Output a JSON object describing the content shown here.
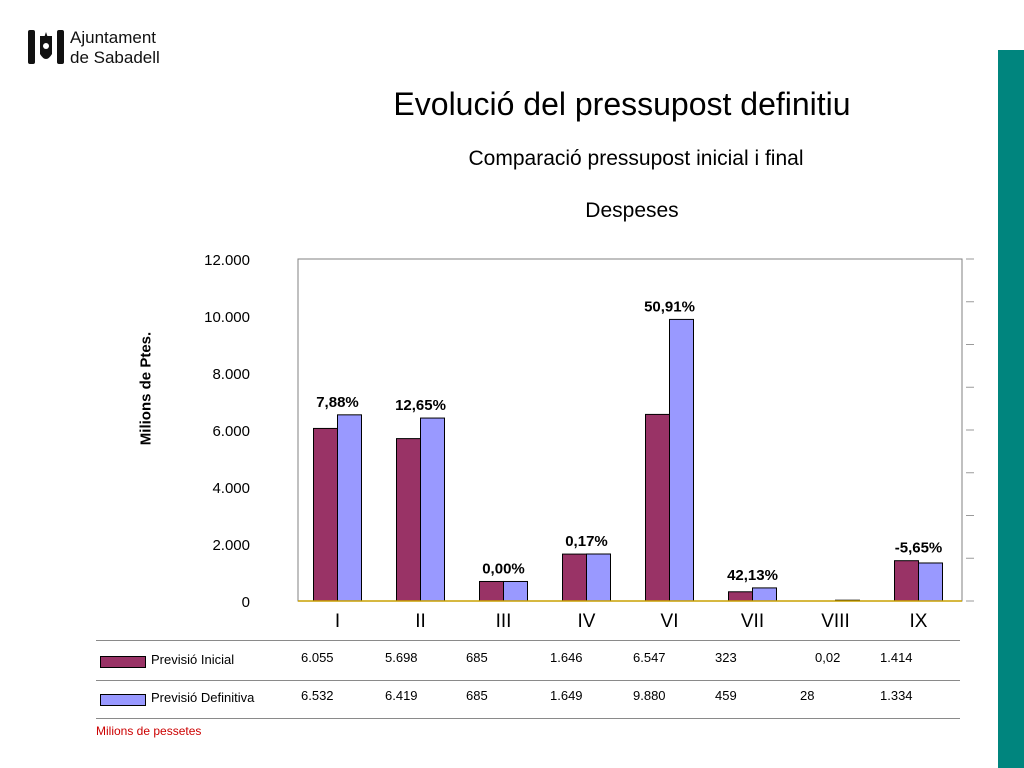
{
  "brand": {
    "name_line1": "Ajuntament",
    "name_line2": "de Sabadell",
    "accent": "#00857e"
  },
  "header": {
    "title": "Evolució del pressupost definitiu",
    "subtitle": "Comparació pressupost inicial i final",
    "subtitle2": "Despeses"
  },
  "chart_data": {
    "type": "bar",
    "title": "Evolució del pressupost definitiu",
    "subtitle": "Comparació pressupost inicial i final",
    "ylabel": "Milions de Ptes.",
    "ylim": [
      0,
      12000
    ],
    "yticks": [
      "0",
      "2.000",
      "4.000",
      "6.000",
      "8.000",
      "10.000",
      "12.000"
    ],
    "categories": [
      "I",
      "II",
      "III",
      "IV",
      "VI",
      "VII",
      "VIII",
      "IX"
    ],
    "series": [
      {
        "name": "Previsió Inicial",
        "color": "#993366",
        "values": [
          6055,
          5698,
          685,
          1646,
          6547,
          323,
          0.02,
          1414
        ],
        "labels": [
          "6.055",
          "5.698",
          "685",
          "1.646",
          "6.547",
          "323",
          "0,02",
          "1.414"
        ]
      },
      {
        "name": "Previsió Definitiva",
        "color": "#9999ff",
        "values": [
          6532,
          6419,
          685,
          1649,
          9880,
          459,
          28,
          1334
        ],
        "labels": [
          "6.532",
          "6.419",
          "685",
          "1.649",
          "9.880",
          "459",
          "28",
          "1.334"
        ]
      }
    ],
    "annotations": [
      "7,88%",
      "12,65%",
      "0,00%",
      "0,17%",
      "50,91%",
      "42,13%",
      "",
      "-5,65%"
    ],
    "grid": false,
    "legend": "bottom-left table"
  },
  "footnote": "Milions de pessetes"
}
